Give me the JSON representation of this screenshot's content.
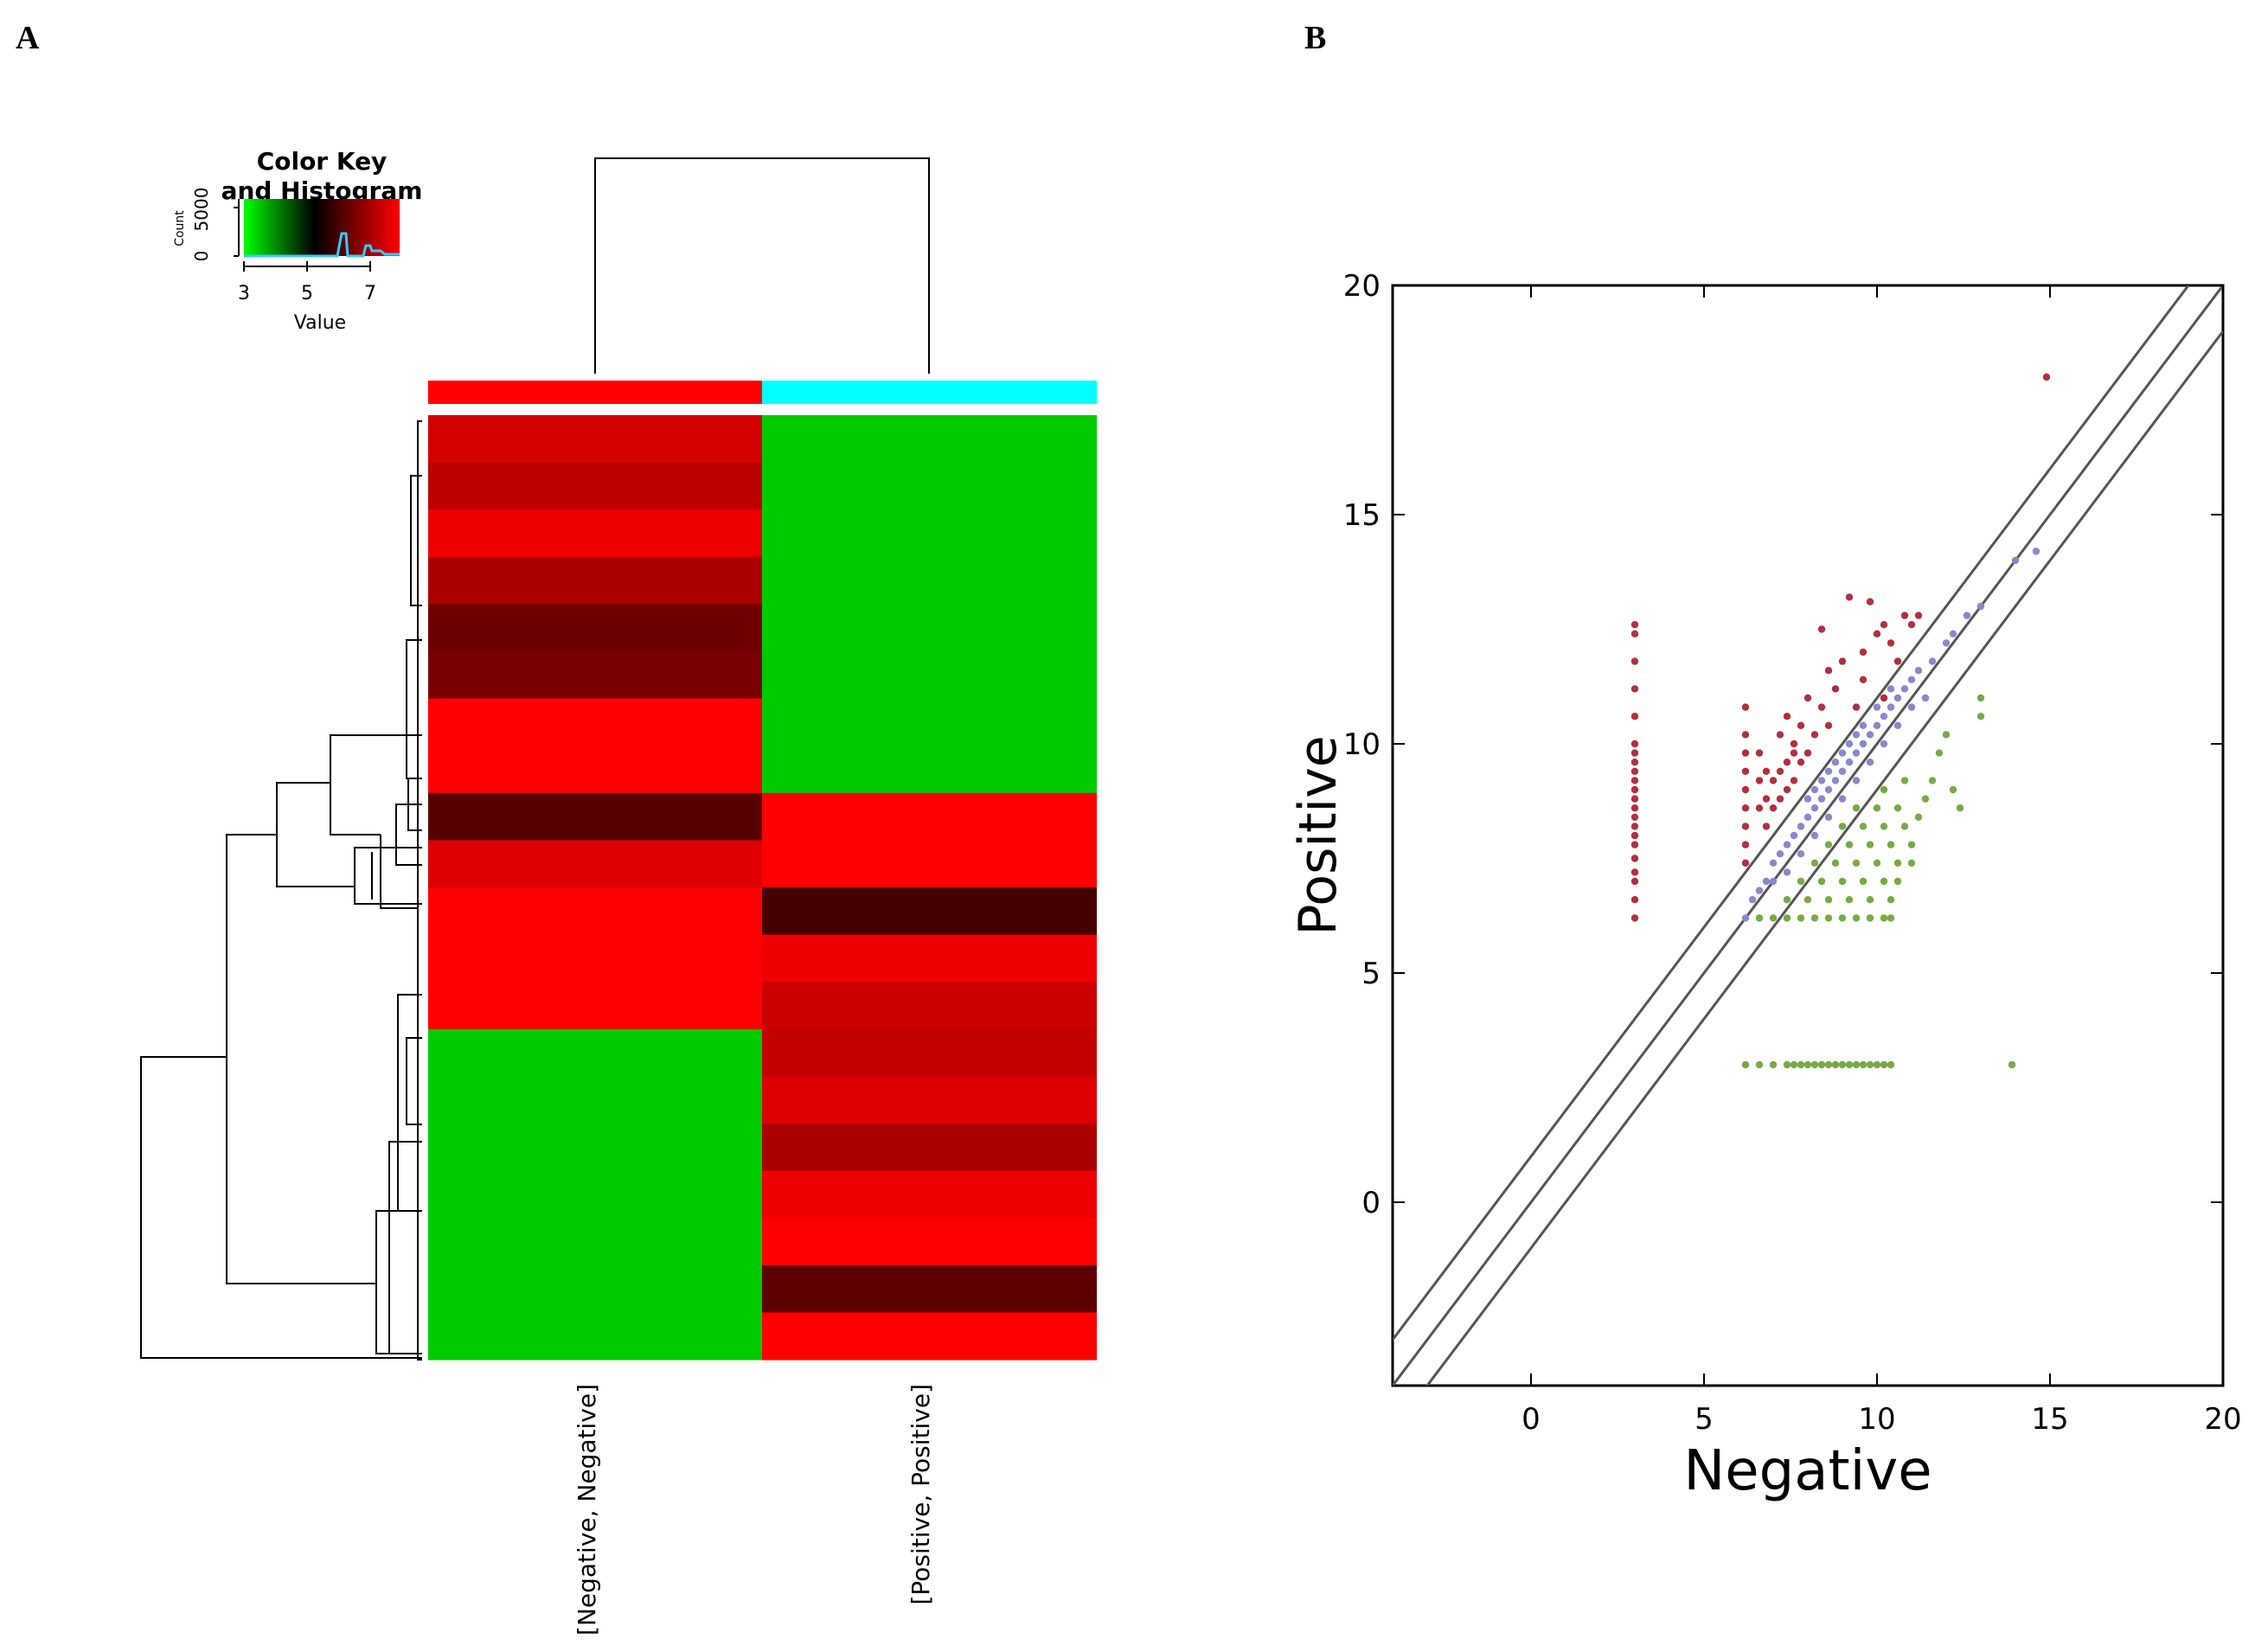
{
  "figure": {
    "panel_a_letter": "A",
    "panel_b_letter": "B"
  },
  "chart_data": [
    {
      "type": "heatmap",
      "columns": [
        "[Negative, Negative]",
        "[Positive, Positive]"
      ],
      "column_side_colors": [
        "#ff0000",
        "#00ffff"
      ],
      "color_key": {
        "title_line1": "Color Key",
        "title_line2": "and Histogram",
        "xlabel": "Value",
        "ylabel": "Count",
        "x_ticks": [
          "3",
          "5",
          "7"
        ],
        "y_ticks": [
          "0",
          "5000"
        ],
        "range": [
          2.5,
          8
        ],
        "colors": [
          "#00ff00",
          "#000000",
          "#ff0000"
        ]
      },
      "rows": [
        {
          "neg": 7.5,
          "pos": 3.0
        },
        {
          "neg": 7.2,
          "pos": 3.0
        },
        {
          "neg": 7.8,
          "pos": 3.0
        },
        {
          "neg": 7.0,
          "pos": 3.0
        },
        {
          "neg": 6.3,
          "pos": 3.0
        },
        {
          "neg": 6.4,
          "pos": 3.0
        },
        {
          "neg": 8.0,
          "pos": 3.0
        },
        {
          "neg": 8.1,
          "pos": 3.0
        },
        {
          "neg": 6.0,
          "pos": 8.0
        },
        {
          "neg": 7.6,
          "pos": 8.0
        },
        {
          "neg": 8.0,
          "pos": 5.8
        },
        {
          "neg": 8.0,
          "pos": 7.8
        },
        {
          "neg": 8.0,
          "pos": 7.4
        },
        {
          "neg": 3.0,
          "pos": 7.3
        },
        {
          "neg": 3.0,
          "pos": 7.6
        },
        {
          "neg": 3.0,
          "pos": 7.0
        },
        {
          "neg": 3.0,
          "pos": 7.8
        },
        {
          "neg": 3.0,
          "pos": 8.0
        },
        {
          "neg": 3.0,
          "pos": 6.1
        },
        {
          "neg": 3.0,
          "pos": 8.0
        }
      ]
    },
    {
      "type": "scatter",
      "xlabel": "Negative",
      "ylabel": "Positive",
      "xlim": [
        -4,
        20
      ],
      "ylim": [
        -4,
        20
      ],
      "x_ticks": [
        0,
        5,
        10,
        15,
        20
      ],
      "y_ticks": [
        0,
        5,
        10,
        15,
        20
      ],
      "diagonal_lines": [
        {
          "intercept": 1
        },
        {
          "intercept": 0
        },
        {
          "intercept": -1
        }
      ],
      "series": [
        {
          "color": "#b03040",
          "points": [
            [
              3.0,
              6.2
            ],
            [
              3.0,
              6.6
            ],
            [
              3.0,
              7.0
            ],
            [
              3.0,
              7.2
            ],
            [
              3.0,
              7.5
            ],
            [
              3.0,
              7.8
            ],
            [
              3.0,
              8.0
            ],
            [
              3.0,
              8.2
            ],
            [
              3.0,
              8.4
            ],
            [
              3.0,
              8.6
            ],
            [
              3.0,
              8.8
            ],
            [
              3.0,
              9.0
            ],
            [
              3.0,
              9.2
            ],
            [
              3.0,
              9.4
            ],
            [
              3.0,
              9.6
            ],
            [
              3.0,
              9.8
            ],
            [
              3.0,
              10.0
            ],
            [
              3.0,
              10.6
            ],
            [
              3.0,
              11.2
            ],
            [
              3.0,
              11.8
            ],
            [
              3.0,
              12.4
            ],
            [
              3.0,
              12.6
            ],
            [
              6.2,
              7.4
            ],
            [
              6.2,
              7.8
            ],
            [
              6.2,
              8.2
            ],
            [
              6.2,
              8.6
            ],
            [
              6.2,
              9.0
            ],
            [
              6.2,
              9.4
            ],
            [
              6.2,
              9.8
            ],
            [
              6.2,
              10.2
            ],
            [
              6.2,
              10.8
            ],
            [
              6.6,
              8.6
            ],
            [
              6.6,
              9.2
            ],
            [
              6.6,
              9.8
            ],
            [
              6.8,
              8.2
            ],
            [
              6.8,
              8.8
            ],
            [
              6.8,
              9.4
            ],
            [
              7.0,
              8.6
            ],
            [
              7.0,
              9.2
            ],
            [
              7.2,
              8.8
            ],
            [
              7.2,
              9.4
            ],
            [
              7.2,
              10.2
            ],
            [
              7.4,
              9.0
            ],
            [
              7.4,
              9.6
            ],
            [
              7.4,
              10.6
            ],
            [
              7.6,
              9.2
            ],
            [
              7.6,
              9.8
            ],
            [
              7.6,
              10.0
            ],
            [
              7.8,
              9.6
            ],
            [
              7.8,
              10.4
            ],
            [
              8.0,
              9.8
            ],
            [
              8.0,
              11.0
            ],
            [
              8.2,
              10.2
            ],
            [
              8.4,
              10.8
            ],
            [
              8.6,
              10.4
            ],
            [
              8.6,
              11.6
            ],
            [
              8.4,
              12.5
            ],
            [
              8.8,
              11.2
            ],
            [
              9.0,
              11.8
            ],
            [
              9.2,
              13.2
            ],
            [
              9.4,
              10.8
            ],
            [
              9.6,
              12.0
            ],
            [
              9.8,
              13.1
            ],
            [
              10.0,
              12.4
            ],
            [
              10.2,
              11.0
            ],
            [
              10.4,
              12.2
            ],
            [
              10.6,
              11.8
            ],
            [
              10.8,
              12.8
            ],
            [
              11.0,
              12.6
            ],
            [
              11.2,
              12.8
            ],
            [
              9.6,
              11.4
            ],
            [
              10.2,
              12.6
            ]
          ]
        },
        {
          "color": "#8888cc",
          "points": [
            [
              6.2,
              6.2
            ],
            [
              6.4,
              6.6
            ],
            [
              6.6,
              6.8
            ],
            [
              6.8,
              7.0
            ],
            [
              7.0,
              7.4
            ],
            [
              7.2,
              7.6
            ],
            [
              7.4,
              7.8
            ],
            [
              7.6,
              8.0
            ],
            [
              7.8,
              8.2
            ],
            [
              8.0,
              8.4
            ],
            [
              8.2,
              8.6
            ],
            [
              8.4,
              8.8
            ],
            [
              8.6,
              9.0
            ],
            [
              8.8,
              9.2
            ],
            [
              9.0,
              9.4
            ],
            [
              9.2,
              9.6
            ],
            [
              9.4,
              9.8
            ],
            [
              9.6,
              10.0
            ],
            [
              9.8,
              10.2
            ],
            [
              10.0,
              10.4
            ],
            [
              10.2,
              10.6
            ],
            [
              10.4,
              10.8
            ],
            [
              10.6,
              11.0
            ],
            [
              10.8,
              11.2
            ],
            [
              11.0,
              11.4
            ],
            [
              11.2,
              11.6
            ],
            [
              11.6,
              11.8
            ],
            [
              12.0,
              12.2
            ],
            [
              12.2,
              12.4
            ],
            [
              12.6,
              12.8
            ],
            [
              13.0,
              13.0
            ],
            [
              14.0,
              14.0
            ],
            [
              14.6,
              14.2
            ],
            [
              7.0,
              7.0
            ],
            [
              7.4,
              7.2
            ],
            [
              7.8,
              7.6
            ],
            [
              8.2,
              8.0
            ],
            [
              8.6,
              8.4
            ],
            [
              9.0,
              8.8
            ],
            [
              9.4,
              9.2
            ],
            [
              9.8,
              9.6
            ],
            [
              10.2,
              10.0
            ],
            [
              10.6,
              10.4
            ],
            [
              11.0,
              10.8
            ],
            [
              8.0,
              8.8
            ],
            [
              8.4,
              9.2
            ],
            [
              8.8,
              9.6
            ],
            [
              9.2,
              10.0
            ],
            [
              9.6,
              10.4
            ],
            [
              10.0,
              10.8
            ],
            [
              10.4,
              11.2
            ],
            [
              8.2,
              9.0
            ],
            [
              8.6,
              9.4
            ],
            [
              9.0,
              9.8
            ],
            [
              9.4,
              10.2
            ],
            [
              11.4,
              11.0
            ]
          ]
        },
        {
          "color": "#77aa44",
          "points": [
            [
              6.6,
              6.2
            ],
            [
              7.0,
              6.2
            ],
            [
              7.4,
              6.2
            ],
            [
              7.8,
              6.2
            ],
            [
              8.2,
              6.2
            ],
            [
              8.6,
              6.2
            ],
            [
              9.0,
              6.2
            ],
            [
              9.4,
              6.2
            ],
            [
              9.8,
              6.2
            ],
            [
              10.2,
              6.2
            ],
            [
              10.4,
              6.2
            ],
            [
              7.4,
              6.6
            ],
            [
              8.0,
              6.6
            ],
            [
              8.6,
              6.6
            ],
            [
              9.2,
              6.6
            ],
            [
              9.8,
              6.6
            ],
            [
              10.4,
              6.6
            ],
            [
              7.8,
              7.0
            ],
            [
              8.4,
              7.0
            ],
            [
              9.0,
              7.0
            ],
            [
              9.6,
              7.0
            ],
            [
              10.2,
              7.0
            ],
            [
              10.6,
              7.0
            ],
            [
              8.2,
              7.4
            ],
            [
              8.8,
              7.4
            ],
            [
              9.4,
              7.4
            ],
            [
              10.0,
              7.4
            ],
            [
              10.6,
              7.4
            ],
            [
              11.0,
              7.4
            ],
            [
              8.6,
              7.8
            ],
            [
              9.2,
              7.8
            ],
            [
              9.8,
              7.8
            ],
            [
              10.4,
              7.8
            ],
            [
              11.0,
              7.8
            ],
            [
              9.0,
              8.2
            ],
            [
              9.6,
              8.2
            ],
            [
              10.2,
              8.2
            ],
            [
              10.8,
              8.2
            ],
            [
              11.2,
              8.4
            ],
            [
              9.4,
              8.6
            ],
            [
              10.0,
              8.6
            ],
            [
              10.6,
              8.6
            ],
            [
              11.4,
              8.8
            ],
            [
              10.2,
              9.0
            ],
            [
              10.8,
              9.2
            ],
            [
              11.6,
              9.2
            ],
            [
              12.2,
              9.0
            ],
            [
              12.4,
              8.6
            ],
            [
              11.8,
              9.8
            ],
            [
              12.0,
              10.2
            ],
            [
              13.0,
              11.0
            ],
            [
              13.0,
              10.6
            ],
            [
              6.2,
              3.0
            ],
            [
              6.6,
              3.0
            ],
            [
              7.0,
              3.0
            ],
            [
              7.4,
              3.0
            ],
            [
              7.6,
              3.0
            ],
            [
              7.8,
              3.0
            ],
            [
              8.0,
              3.0
            ],
            [
              8.2,
              3.0
            ],
            [
              8.4,
              3.0
            ],
            [
              8.6,
              3.0
            ],
            [
              8.8,
              3.0
            ],
            [
              9.0,
              3.0
            ],
            [
              9.2,
              3.0
            ],
            [
              9.4,
              3.0
            ],
            [
              9.6,
              3.0
            ],
            [
              9.8,
              3.0
            ],
            [
              10.0,
              3.0
            ],
            [
              10.2,
              3.0
            ],
            [
              10.4,
              3.0
            ],
            [
              13.9,
              3.0
            ]
          ]
        },
        {
          "color": "#b03040",
          "points": [
            [
              14.9,
              18.0
            ]
          ]
        }
      ]
    }
  ]
}
